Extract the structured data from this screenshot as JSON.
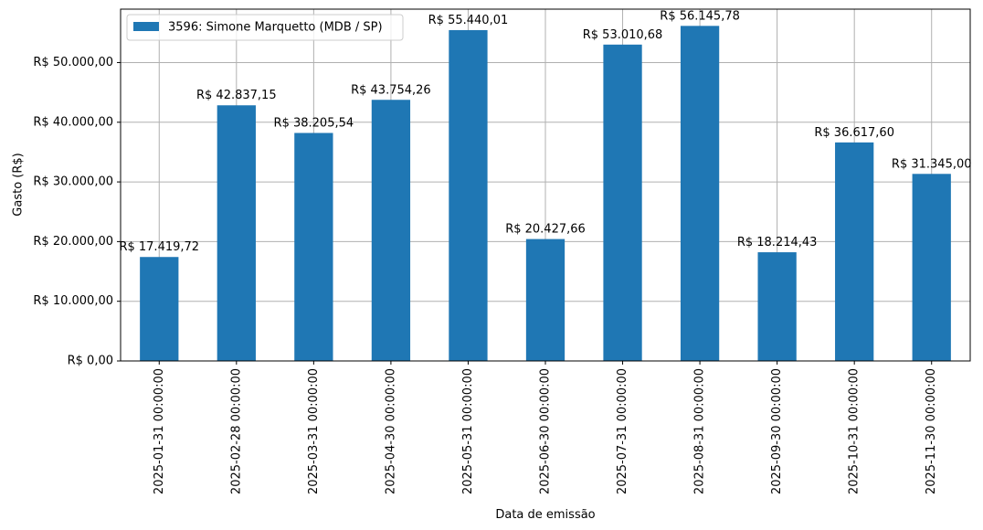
{
  "chart_data": {
    "type": "bar",
    "xlabel": "Data de emissão",
    "ylabel": "Gasto (R$)",
    "categories": [
      "2025-01-31 00:00:00",
      "2025-02-28 00:00:00",
      "2025-03-31 00:00:00",
      "2025-04-30 00:00:00",
      "2025-05-31 00:00:00",
      "2025-06-30 00:00:00",
      "2025-07-31 00:00:00",
      "2025-08-31 00:00:00",
      "2025-09-30 00:00:00",
      "2025-10-31 00:00:00",
      "2025-11-30 00:00:00"
    ],
    "series": [
      {
        "name": "3596: Simone Marquetto (MDB / SP)",
        "color": "#1f77b4",
        "values": [
          17419.72,
          42837.15,
          38205.54,
          43754.26,
          55440.01,
          20427.66,
          53010.68,
          56145.78,
          18214.43,
          36617.6,
          31345.0
        ],
        "value_labels": [
          "R$ 17.419,72",
          "R$ 42.837,15",
          "R$ 38.205,54",
          "R$ 43.754,26",
          "R$ 55.440,01",
          "R$ 20.427,66",
          "R$ 53.010,68",
          "R$ 56.145,78",
          "R$ 18.214,43",
          "R$ 36.617,60",
          "R$ 31.345,00"
        ]
      }
    ],
    "ylim": [
      0,
      58953.07
    ],
    "yticks": [
      {
        "value": 0,
        "label": "R$ 0,00"
      },
      {
        "value": 10000,
        "label": "R$ 10.000,00"
      },
      {
        "value": 20000,
        "label": "R$ 20.000,00"
      },
      {
        "value": 30000,
        "label": "R$ 30.000,00"
      },
      {
        "value": 40000,
        "label": "R$ 40.000,00"
      },
      {
        "value": 50000,
        "label": "R$ 50.000,00"
      }
    ],
    "grid": true,
    "legend": "upper-left"
  }
}
